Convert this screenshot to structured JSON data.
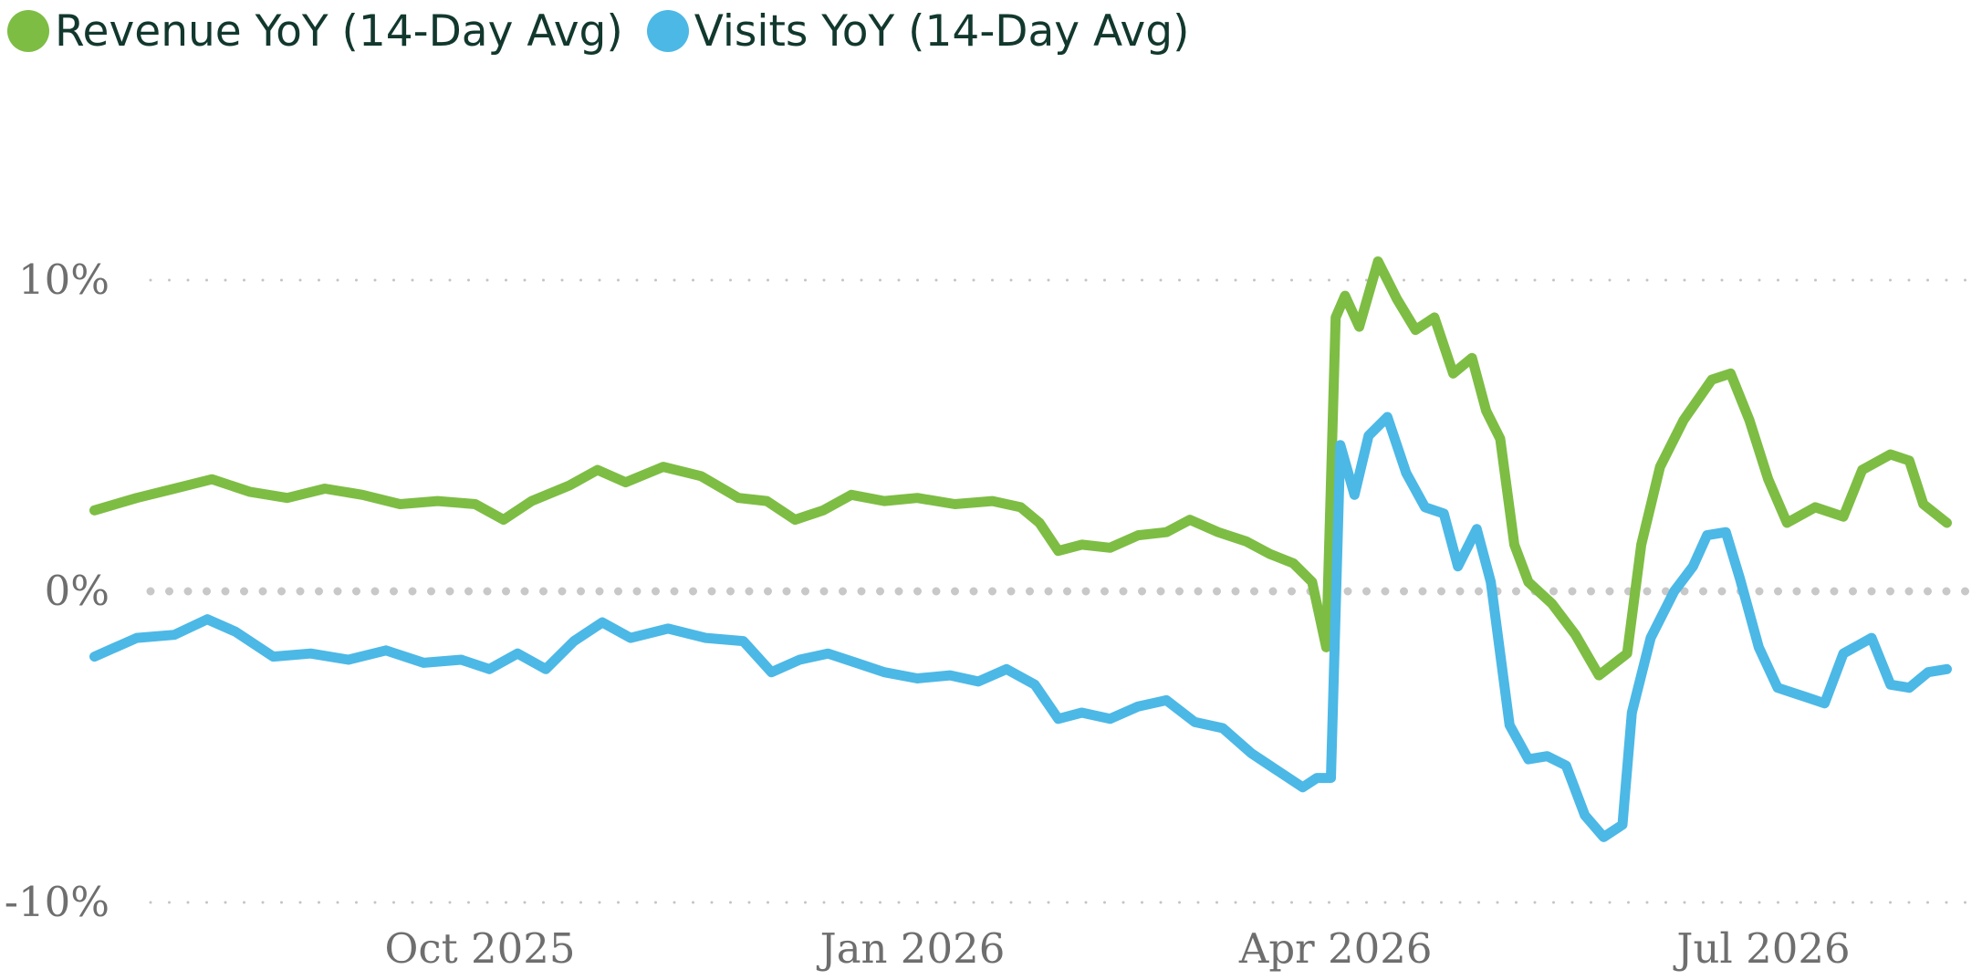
{
  "chart_data": {
    "type": "line",
    "title": "",
    "xlabel": "",
    "ylabel": "",
    "legend_position": "top-left",
    "grid": "horizontal dotted",
    "x_range": [
      "2025-07-11",
      "2026-08-09"
    ],
    "ylim": [
      -10,
      10
    ],
    "y_ticks": [
      {
        "value": 10,
        "label": "10%"
      },
      {
        "value": 0,
        "label": "0%"
      },
      {
        "value": -10,
        "label": "-10%"
      }
    ],
    "x_ticks": [
      {
        "date": "2025-10-01",
        "label": "Oct 2025"
      },
      {
        "date": "2026-01-01",
        "label": "Jan 2026"
      },
      {
        "date": "2026-04-01",
        "label": "Apr 2026"
      },
      {
        "date": "2026-07-01",
        "label": "Jul 2026"
      }
    ],
    "series": [
      {
        "name": "Revenue YoY (14-Day Avg)",
        "color": "#7dbd44",
        "points": [
          [
            "2025-07-11",
            2.6
          ],
          [
            "2025-07-20",
            3.0
          ],
          [
            "2025-07-28",
            3.3
          ],
          [
            "2025-08-05",
            3.6
          ],
          [
            "2025-08-13",
            3.2
          ],
          [
            "2025-08-21",
            3.0
          ],
          [
            "2025-08-29",
            3.3
          ],
          [
            "2025-09-06",
            3.1
          ],
          [
            "2025-09-14",
            2.8
          ],
          [
            "2025-09-22",
            2.9
          ],
          [
            "2025-09-30",
            2.8
          ],
          [
            "2025-10-06",
            2.3
          ],
          [
            "2025-10-12",
            2.9
          ],
          [
            "2025-10-20",
            3.4
          ],
          [
            "2025-10-26",
            3.9
          ],
          [
            "2025-11-01",
            3.5
          ],
          [
            "2025-11-09",
            4.0
          ],
          [
            "2025-11-17",
            3.7
          ],
          [
            "2025-11-25",
            3.0
          ],
          [
            "2025-12-01",
            2.9
          ],
          [
            "2025-12-07",
            2.3
          ],
          [
            "2025-12-13",
            2.6
          ],
          [
            "2025-12-19",
            3.1
          ],
          [
            "2025-12-26",
            2.9
          ],
          [
            "2026-01-02",
            3.0
          ],
          [
            "2026-01-10",
            2.8
          ],
          [
            "2026-01-18",
            2.9
          ],
          [
            "2026-01-24",
            2.7
          ],
          [
            "2026-01-28",
            2.2
          ],
          [
            "2026-02-01",
            1.3
          ],
          [
            "2026-02-06",
            1.5
          ],
          [
            "2026-02-12",
            1.4
          ],
          [
            "2026-02-18",
            1.8
          ],
          [
            "2026-02-24",
            1.9
          ],
          [
            "2026-03-01",
            2.3
          ],
          [
            "2026-03-07",
            1.9
          ],
          [
            "2026-03-13",
            1.6
          ],
          [
            "2026-03-18",
            1.2
          ],
          [
            "2026-03-23",
            0.9
          ],
          [
            "2026-03-27",
            0.3
          ],
          [
            "2026-03-30",
            -1.8
          ],
          [
            "2026-04-01",
            8.8
          ],
          [
            "2026-04-03",
            9.5
          ],
          [
            "2026-04-06",
            8.5
          ],
          [
            "2026-04-10",
            10.6
          ],
          [
            "2026-04-14",
            9.4
          ],
          [
            "2026-04-18",
            8.4
          ],
          [
            "2026-04-22",
            8.8
          ],
          [
            "2026-04-26",
            7.0
          ],
          [
            "2026-04-30",
            7.5
          ],
          [
            "2026-05-03",
            5.8
          ],
          [
            "2026-05-06",
            4.9
          ],
          [
            "2026-05-09",
            1.5
          ],
          [
            "2026-05-12",
            0.3
          ],
          [
            "2026-05-17",
            -0.4
          ],
          [
            "2026-05-22",
            -1.4
          ],
          [
            "2026-05-27",
            -2.7
          ],
          [
            "2026-06-02",
            -2.0
          ],
          [
            "2026-06-05",
            1.5
          ],
          [
            "2026-06-09",
            4.0
          ],
          [
            "2026-06-14",
            5.5
          ],
          [
            "2026-06-20",
            6.8
          ],
          [
            "2026-06-24",
            7.0
          ],
          [
            "2026-06-28",
            5.5
          ],
          [
            "2026-07-02",
            3.6
          ],
          [
            "2026-07-06",
            2.2
          ],
          [
            "2026-07-12",
            2.7
          ],
          [
            "2026-07-18",
            2.4
          ],
          [
            "2026-07-22",
            3.9
          ],
          [
            "2026-07-28",
            4.4
          ],
          [
            "2026-08-01",
            4.2
          ],
          [
            "2026-08-04",
            2.8
          ],
          [
            "2026-08-09",
            2.2
          ]
        ]
      },
      {
        "name": "Visits YoY (14-Day Avg)",
        "color": "#4cb8e6",
        "points": [
          [
            "2025-07-11",
            -2.1
          ],
          [
            "2025-07-20",
            -1.5
          ],
          [
            "2025-07-28",
            -1.4
          ],
          [
            "2025-08-04",
            -0.9
          ],
          [
            "2025-08-10",
            -1.3
          ],
          [
            "2025-08-18",
            -2.1
          ],
          [
            "2025-08-26",
            -2.0
          ],
          [
            "2025-09-03",
            -2.2
          ],
          [
            "2025-09-11",
            -1.9
          ],
          [
            "2025-09-19",
            -2.3
          ],
          [
            "2025-09-27",
            -2.2
          ],
          [
            "2025-10-03",
            -2.5
          ],
          [
            "2025-10-09",
            -2.0
          ],
          [
            "2025-10-15",
            -2.5
          ],
          [
            "2025-10-21",
            -1.6
          ],
          [
            "2025-10-27",
            -1.0
          ],
          [
            "2025-11-02",
            -1.5
          ],
          [
            "2025-11-10",
            -1.2
          ],
          [
            "2025-11-18",
            -1.5
          ],
          [
            "2025-11-26",
            -1.6
          ],
          [
            "2025-12-02",
            -2.6
          ],
          [
            "2025-12-08",
            -2.2
          ],
          [
            "2025-12-14",
            -2.0
          ],
          [
            "2025-12-20",
            -2.3
          ],
          [
            "2025-12-26",
            -2.6
          ],
          [
            "2026-01-02",
            -2.8
          ],
          [
            "2026-01-09",
            -2.7
          ],
          [
            "2026-01-15",
            -2.9
          ],
          [
            "2026-01-21",
            -2.5
          ],
          [
            "2026-01-27",
            -3.0
          ],
          [
            "2026-02-01",
            -4.1
          ],
          [
            "2026-02-06",
            -3.9
          ],
          [
            "2026-02-12",
            -4.1
          ],
          [
            "2026-02-18",
            -3.7
          ],
          [
            "2026-02-24",
            -3.5
          ],
          [
            "2026-03-02",
            -4.2
          ],
          [
            "2026-03-08",
            -4.4
          ],
          [
            "2026-03-14",
            -5.2
          ],
          [
            "2026-03-20",
            -5.8
          ],
          [
            "2026-03-25",
            -6.3
          ],
          [
            "2026-03-28",
            -6.0
          ],
          [
            "2026-03-31",
            -6.0
          ],
          [
            "2026-04-02",
            4.7
          ],
          [
            "2026-04-05",
            3.1
          ],
          [
            "2026-04-08",
            5.0
          ],
          [
            "2026-04-12",
            5.6
          ],
          [
            "2026-04-16",
            3.8
          ],
          [
            "2026-04-20",
            2.7
          ],
          [
            "2026-04-24",
            2.5
          ],
          [
            "2026-04-27",
            0.8
          ],
          [
            "2026-05-01",
            2.0
          ],
          [
            "2026-05-04",
            0.3
          ],
          [
            "2026-05-08",
            -4.3
          ],
          [
            "2026-05-12",
            -5.4
          ],
          [
            "2026-05-16",
            -5.3
          ],
          [
            "2026-05-20",
            -5.6
          ],
          [
            "2026-05-24",
            -7.2
          ],
          [
            "2026-05-28",
            -7.9
          ],
          [
            "2026-06-01",
            -7.5
          ],
          [
            "2026-06-03",
            -3.9
          ],
          [
            "2026-06-07",
            -1.5
          ],
          [
            "2026-06-12",
            0.0
          ],
          [
            "2026-06-16",
            0.8
          ],
          [
            "2026-06-19",
            1.8
          ],
          [
            "2026-06-23",
            1.9
          ],
          [
            "2026-06-26",
            0.4
          ],
          [
            "2026-06-30",
            -1.8
          ],
          [
            "2026-07-04",
            -3.1
          ],
          [
            "2026-07-10",
            -3.4
          ],
          [
            "2026-07-14",
            -3.6
          ],
          [
            "2026-07-18",
            -2.0
          ],
          [
            "2026-07-24",
            -1.5
          ],
          [
            "2026-07-28",
            -3.0
          ],
          [
            "2026-08-01",
            -3.1
          ],
          [
            "2026-08-05",
            -2.6
          ],
          [
            "2026-08-09",
            -2.5
          ]
        ]
      }
    ]
  }
}
